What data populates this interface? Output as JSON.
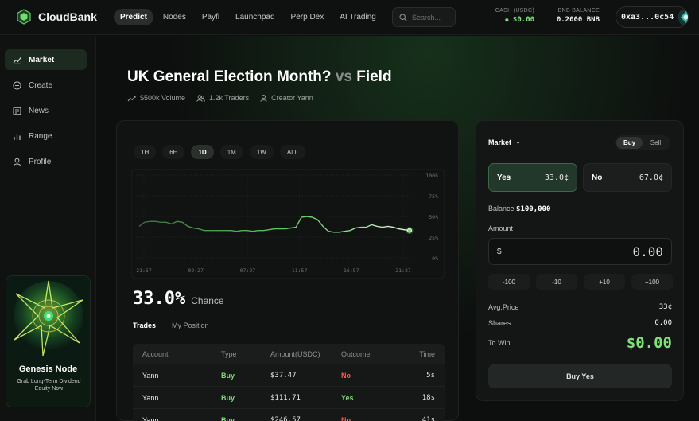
{
  "colors": {
    "accent_green": "#7fe37a",
    "no_red": "#ff5a4e",
    "background": "#0d0f0e"
  },
  "header": {
    "brand": "CloudBank",
    "nav": [
      "Predict",
      "Nodes",
      "Payfi",
      "Launchpad",
      "Perp Dex",
      "AI Trading"
    ],
    "active_nav": "Predict",
    "search_placeholder": "Search...",
    "cash_label": "CASH (USDC)",
    "cash_value": "$0.00",
    "bnb_label": "BNB BALANCE",
    "bnb_value": "0.2000 BNB",
    "wallet_address": "0xa3...0c54"
  },
  "sidebar": {
    "items": [
      {
        "label": "Market",
        "icon": "chart-line-icon"
      },
      {
        "label": "Create",
        "icon": "plus-circle-icon"
      },
      {
        "label": "News",
        "icon": "newspaper-icon"
      },
      {
        "label": "Range",
        "icon": "bar-chart-icon"
      },
      {
        "label": "Profile",
        "icon": "user-icon"
      }
    ],
    "active": "Market",
    "promo": {
      "title": "Genesis Node",
      "subtitle": "Grab Long-Term Dividend Equity Now"
    }
  },
  "market": {
    "title_main": "UK General Election Month?",
    "title_vs": "vs",
    "title_field": "Field",
    "volume": "$500k Volume",
    "traders": "1.2k Traders",
    "creator": "Creator Yann"
  },
  "chart": {
    "ranges": [
      "1H",
      "6H",
      "1D",
      "1M",
      "1W",
      "ALL"
    ],
    "active_range": "1D",
    "chance_value": "33.0%",
    "chance_label": "Chance"
  },
  "chart_data": {
    "type": "line",
    "x_tick_labels": [
      "21:57",
      "02:27",
      "07:27",
      "11:57",
      "16:57",
      "21:27"
    ],
    "y_tick_labels": [
      "100%",
      "75%",
      "50%",
      "25%",
      "0%"
    ],
    "ylim": [
      0,
      100
    ],
    "grid": true,
    "series": [
      {
        "values": [
          38,
          43,
          44,
          44,
          43,
          43,
          41,
          44,
          43,
          38,
          36,
          35,
          33,
          33,
          33,
          33,
          33,
          33,
          32,
          33,
          33,
          32,
          33,
          33,
          34,
          35,
          35,
          35,
          36,
          37,
          49,
          50,
          49,
          46,
          38,
          32,
          31,
          31,
          32,
          33,
          36,
          37,
          37,
          40,
          38,
          37,
          38,
          37,
          35,
          34,
          33
        ]
      }
    ]
  },
  "trades": {
    "tabs": [
      "Trades",
      "My Position"
    ],
    "active_tab": "Trades",
    "columns": [
      "Account",
      "Type",
      "Amount(USDC)",
      "Outcome",
      "Time"
    ],
    "rows": [
      {
        "account": "Yann",
        "type": "Buy",
        "amount": "$37.47",
        "outcome": "No",
        "time": "5s"
      },
      {
        "account": "Yann",
        "type": "Buy",
        "amount": "$111.71",
        "outcome": "Yes",
        "time": "18s"
      },
      {
        "account": "Yann",
        "type": "Buy",
        "amount": "$246.57",
        "outcome": "No",
        "time": "41s"
      }
    ]
  },
  "trade_panel": {
    "market_label": "Market",
    "buy_label": "Buy",
    "sell_label": "Sell",
    "yes_label": "Yes",
    "yes_price": "33.0¢",
    "no_label": "No",
    "no_price": "67.0¢",
    "balance_label": "Balance",
    "balance_value": "$100,000",
    "amount_label": "Amount",
    "amount_currency": "$",
    "amount_value": "0.00",
    "quick_amounts": [
      "-100",
      "-10",
      "+10",
      "+100"
    ],
    "avg_price_label": "Avg.Price",
    "avg_price_value": "33¢",
    "shares_label": "Shares",
    "shares_value": "0.00",
    "to_win_label": "To Win",
    "to_win_value": "$0.00",
    "submit_label": "Buy Yes"
  }
}
